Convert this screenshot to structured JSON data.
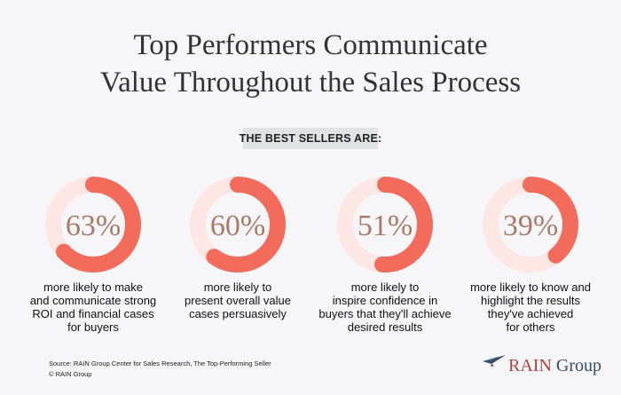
{
  "title": {
    "line1": "Top Performers Communicate",
    "line2": "Value Throughout the Sales Process"
  },
  "banner": "THE BEST SELLERS ARE:",
  "colors": {
    "ring_fill": "#f26b5b",
    "ring_track": "#fde6e3",
    "percent_text": "#a87b68",
    "banner_bg": "#e0e3e3",
    "logo_red": "#b1433d",
    "logo_navy": "#3a4a66"
  },
  "chart_data": {
    "type": "donut",
    "stats": [
      {
        "value": 63,
        "label": "63%",
        "lines": [
          "more likely to make",
          "and communicate strong",
          "ROI and financial cases",
          "for buyers"
        ]
      },
      {
        "value": 60,
        "label": "60%",
        "lines": [
          "more likely to",
          "present overall value",
          "cases persuasively"
        ]
      },
      {
        "value": 51,
        "label": "51%",
        "lines": [
          "more likely to",
          "inspire confidence in",
          "buyers that they'll achieve",
          "desired results"
        ]
      },
      {
        "value": 39,
        "label": "39%",
        "lines": [
          "more likely to know and",
          "highlight the results",
          "they've achieved",
          "for others"
        ]
      }
    ]
  },
  "source": {
    "line1": "Source: RAIN Group Center for Sales Research, The Top-Performing Seller",
    "line2": "© RAIN Group"
  },
  "logo": {
    "word1": "RAIN",
    "word2": "Group",
    "icon": "bird-logo-icon"
  }
}
